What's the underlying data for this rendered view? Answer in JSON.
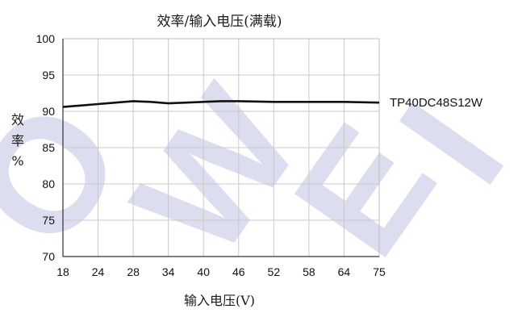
{
  "chart_data": {
    "type": "line",
    "title": "效率/输入电压(满载)",
    "xlabel": "输入电压(V)",
    "ylabel": "效率%",
    "ylabel_chars": [
      "效",
      "率",
      "%"
    ],
    "categories": [
      "18",
      "24",
      "28",
      "34",
      "40",
      "46",
      "52",
      "58",
      "64",
      "75"
    ],
    "ylim": [
      70,
      100
    ],
    "yticks": [
      "70",
      "75",
      "80",
      "85",
      "90",
      "95",
      "100"
    ],
    "grid": true,
    "series": [
      {
        "name": "TP40DC48S12W",
        "x": [
          18,
          21,
          24,
          26,
          28,
          31,
          34,
          37,
          40,
          43,
          46,
          52,
          58,
          64,
          75
        ],
        "values": [
          90.6,
          90.8,
          91.0,
          91.2,
          91.4,
          91.3,
          91.1,
          91.2,
          91.3,
          91.4,
          91.4,
          91.3,
          91.3,
          91.3,
          91.2
        ],
        "color": "#111111"
      }
    ],
    "watermark_text": "OWEI"
  }
}
